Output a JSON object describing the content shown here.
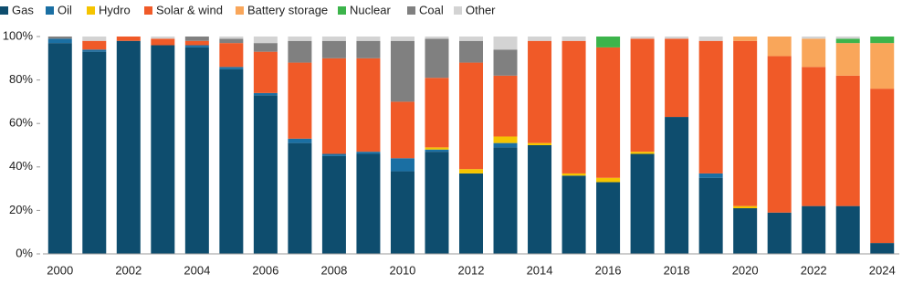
{
  "chart_data": {
    "type": "stacked_bar",
    "categories": [
      "2000",
      null,
      "2002",
      null,
      "2004",
      null,
      "2006",
      null,
      "2008",
      null,
      "2010",
      null,
      "2012",
      null,
      "2014",
      null,
      "2016",
      null,
      "2018",
      null,
      "2020",
      null,
      "2022",
      null,
      "2024"
    ],
    "series": [
      {
        "name": "Gas",
        "color": "#0e4d6e",
        "values": [
          97,
          93,
          98,
          96,
          95,
          85,
          73,
          51,
          45,
          46,
          38,
          47,
          37,
          49,
          50,
          36,
          33,
          46,
          63,
          35,
          21,
          19,
          22,
          22,
          5
        ]
      },
      {
        "name": "Oil",
        "color": "#1a6fa3",
        "values": [
          2,
          1,
          0,
          0,
          1,
          1,
          1,
          2,
          1,
          1,
          6,
          1,
          0,
          2,
          0,
          0,
          0,
          0,
          0,
          2,
          0,
          0,
          0,
          0,
          0
        ]
      },
      {
        "name": "Hydro",
        "color": "#f5c400",
        "values": [
          0,
          0,
          0,
          0,
          0,
          0,
          0,
          0,
          0,
          0,
          0,
          1,
          2,
          3,
          1,
          1,
          2,
          1,
          0,
          0,
          1,
          0,
          0,
          0,
          0
        ]
      },
      {
        "name": "Solar & wind",
        "color": "#f05a28",
        "values": [
          0,
          4,
          2,
          3,
          2,
          11,
          19,
          35,
          44,
          43,
          26,
          32,
          49,
          28,
          47,
          61,
          60,
          52,
          36,
          61,
          76,
          72,
          64,
          60,
          71
        ]
      },
      {
        "name": "Battery storage",
        "color": "#f9a65a",
        "values": [
          0,
          0,
          0,
          0,
          0,
          0,
          0,
          0,
          0,
          0,
          0,
          0,
          0,
          0,
          0,
          0,
          0,
          0,
          0,
          0,
          2,
          9,
          13,
          15,
          21
        ]
      },
      {
        "name": "Nuclear",
        "color": "#3cb44b",
        "values": [
          0,
          0,
          0,
          0,
          0,
          0,
          0,
          0,
          0,
          0,
          0,
          0,
          0,
          0,
          0,
          0,
          5,
          0,
          0,
          0,
          0,
          0,
          0,
          2,
          3
        ]
      },
      {
        "name": "Coal",
        "color": "#808080",
        "values": [
          1,
          0,
          0,
          0,
          2,
          2,
          4,
          10,
          8,
          8,
          28,
          18,
          10,
          12,
          0,
          0,
          0,
          0,
          0,
          0,
          0,
          0,
          0,
          0,
          0
        ]
      },
      {
        "name": "Other",
        "color": "#d3d3d3",
        "values": [
          0,
          2,
          0,
          1,
          0,
          1,
          3,
          2,
          2,
          2,
          2,
          1,
          2,
          6,
          2,
          2,
          0,
          1,
          1,
          2,
          0,
          0,
          1,
          1,
          0
        ]
      }
    ],
    "ylim": [
      0,
      100
    ],
    "yticks": [
      {
        "value": 0,
        "label": "0%"
      },
      {
        "value": 20,
        "label": "20%"
      },
      {
        "value": 40,
        "label": "40%"
      },
      {
        "value": 60,
        "label": "60%"
      },
      {
        "value": 80,
        "label": "80%"
      },
      {
        "value": 100,
        "label": "100%"
      }
    ]
  }
}
